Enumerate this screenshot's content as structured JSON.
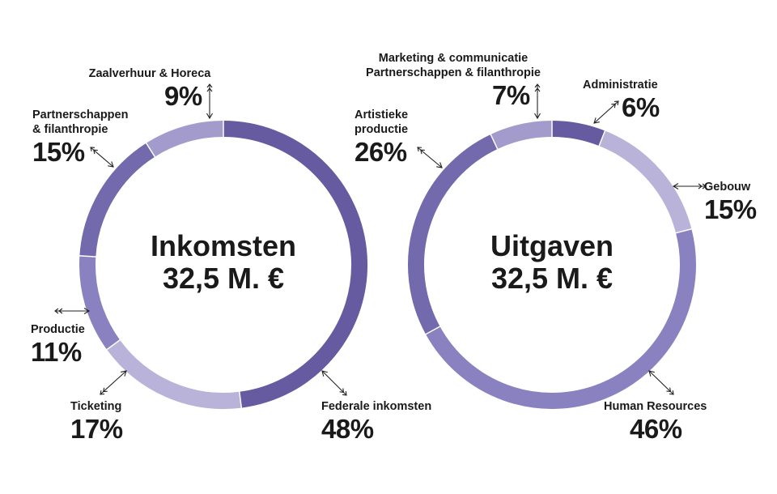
{
  "chart_data": [
    {
      "type": "pie",
      "variant": "donut",
      "title": "Inkomsten",
      "total_label": "32,5 M. €",
      "slices": [
        {
          "label": "Federale inkomsten",
          "value": 48,
          "value_label": "48%",
          "color": "#665aa0"
        },
        {
          "label": "Ticketing",
          "value": 17,
          "value_label": "17%",
          "color": "#b9b2d9"
        },
        {
          "label": "Productie",
          "value": 11,
          "value_label": "11%",
          "color": "#8a82c0"
        },
        {
          "label": "Partnerschappen & filanthropie",
          "label_lines": [
            "Partnerschappen",
            "& filanthropie"
          ],
          "value": 15,
          "value_label": "15%",
          "color": "#7369ad"
        },
        {
          "label": "Zaalverhuur & Horeca",
          "value": 9,
          "value_label": "9%",
          "color": "#a39bcc"
        }
      ]
    },
    {
      "type": "pie",
      "variant": "donut",
      "title": "Uitgaven",
      "total_label": "32,5 M. €",
      "slices": [
        {
          "label": "Administratie",
          "value": 6,
          "value_label": "6%",
          "color": "#665aa0"
        },
        {
          "label": "Gebouw",
          "value": 15,
          "value_label": "15%",
          "color": "#b9b2d9"
        },
        {
          "label": "Human Resources",
          "value": 46,
          "value_label": "46%",
          "color": "#8a82c0"
        },
        {
          "label": "Artistieke productie",
          "label_lines": [
            "Artistieke",
            "productie"
          ],
          "value": 26,
          "value_label": "26%",
          "color": "#7369ad"
        },
        {
          "label": "Marketing & communicatie Partnerschappen & filanthropie",
          "label_lines": [
            "Marketing & communicatie",
            "Partnerschappen & filanthropie"
          ],
          "value": 7,
          "value_label": "7%",
          "color": "#a39bcc"
        }
      ]
    }
  ]
}
